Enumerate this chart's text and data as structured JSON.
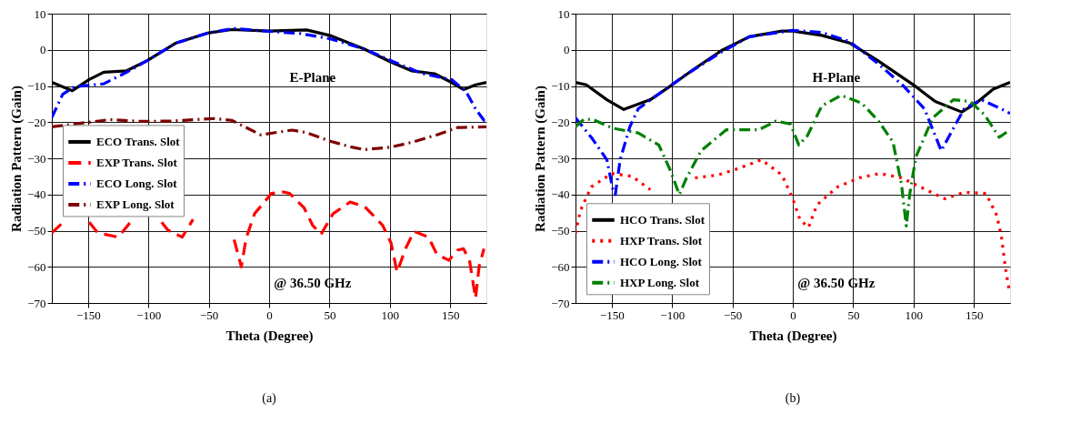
{
  "chart_data": [
    {
      "type": "line",
      "xlabel": "Theta (Degree)",
      "ylabel": "Radiation Pattern (Gain)",
      "xlim": [
        -180,
        180
      ],
      "xticks": [
        -150,
        -100,
        -50,
        0,
        50,
        100,
        150
      ],
      "ylim": [
        -70,
        10
      ],
      "yticks": [
        10,
        0,
        -10,
        -20,
        -30,
        -40,
        -50,
        -60,
        -70
      ],
      "grid": true,
      "legend": "left",
      "annotations": [
        "E-Plane",
        "@ 36.50 GHz",
        "(a)"
      ],
      "series": [
        {
          "name": "ECO Trans. Slot",
          "color": "#000000",
          "line_style": "solid",
          "x": [
            -180,
            -163,
            -149,
            -137,
            -118,
            -101,
            -77,
            -50,
            -31,
            0,
            31,
            50,
            79,
            101,
            118,
            137,
            151,
            161,
            171,
            180
          ],
          "values": [
            -9,
            -11.3,
            -8.2,
            -6.2,
            -5.8,
            -3,
            1.9,
            4.7,
            5.6,
            5.2,
            5.5,
            4,
            0.2,
            -3.4,
            -5.8,
            -6.6,
            -9,
            -11,
            -9.7,
            -9
          ]
        },
        {
          "name": "EXP Trans. Slot",
          "color": "#ff0000",
          "line_style": "dashed",
          "x": [
            -180,
            -168,
            -160,
            -149,
            -142,
            -125,
            -113,
            -100,
            -89,
            -84,
            -72,
            -63,
            -45,
            -29,
            -23,
            -19,
            -12,
            2,
            12,
            17,
            29,
            36,
            43,
            53,
            67,
            79,
            94,
            101,
            106,
            113,
            120,
            132,
            139,
            149,
            156,
            161,
            166,
            171,
            174,
            178
          ],
          "values": [
            -50.6,
            -46.9,
            null,
            -47.7,
            -50.6,
            -51.8,
            -46.9,
            null,
            -47.7,
            -49.8,
            -51.8,
            -46.9,
            null,
            -52.5,
            -60,
            -52,
            -45.3,
            -39.7,
            -39.3,
            -39.7,
            -43.7,
            -48.5,
            -51,
            -45.3,
            -42.1,
            -43.3,
            -48.5,
            -53.4,
            -61.5,
            -55,
            -50.2,
            -51.8,
            -56.6,
            -58.2,
            -55.4,
            -55,
            -58.2,
            -68.7,
            -59.8,
            -55
          ]
        },
        {
          "name": "ECO Long. Slot",
          "color": "#0000ff",
          "line_style": "dashdot",
          "x": [
            -180,
            -171,
            -161,
            -137,
            -118,
            -101,
            -77,
            -50,
            -29,
            0,
            26,
            50,
            79,
            101,
            127,
            151,
            163,
            171,
            178,
            180
          ],
          "values": [
            -18.7,
            -12.3,
            -10.2,
            -9.4,
            -6.2,
            -3,
            1.9,
            4.7,
            5.9,
            5.1,
            4.5,
            3.1,
            0.2,
            -3,
            -6.6,
            -8.2,
            -11.5,
            -16.3,
            -19.5,
            -19.5
          ]
        },
        {
          "name": "EXP Long. Slot",
          "color": "#7f0000",
          "line_style": "dashdot",
          "x": [
            -180,
            -156,
            -132,
            -106,
            -82,
            -46,
            -31,
            -22,
            -7,
            19,
            31,
            50,
            67,
            79,
            101,
            118,
            139,
            156,
            180
          ],
          "values": [
            -21.3,
            -20.3,
            -19.3,
            -19.8,
            -19.7,
            -19,
            -19.5,
            -21,
            -23.5,
            -22.2,
            -22.9,
            -25.2,
            -26.8,
            -27.6,
            -26.9,
            -25.6,
            -23.5,
            -21.5,
            -21.3
          ]
        }
      ]
    },
    {
      "type": "line",
      "xlabel": "Theta (Degree)",
      "ylabel": "Radiation Pattern (Gain)",
      "xlim": [
        -180,
        180
      ],
      "xticks": [
        -150,
        -100,
        -50,
        0,
        50,
        100,
        150
      ],
      "ylim": [
        -70,
        10
      ],
      "yticks": [
        10,
        0,
        -10,
        -20,
        -30,
        -40,
        -50,
        -60,
        -70
      ],
      "grid": true,
      "legend": "bottom left",
      "annotations": [
        "H-Plane",
        "@ 36.50 GHz",
        "(b)"
      ],
      "series": [
        {
          "name": "HCO Trans. Slot",
          "color": "#000000",
          "line_style": "solid",
          "x": [
            -180,
            -171,
            -154,
            -140,
            -118,
            -100,
            -83,
            -59,
            -36,
            -9,
            0,
            24,
            47,
            71,
            100,
            118,
            140,
            152,
            166,
            180
          ],
          "values": [
            -9,
            -9.7,
            -13.8,
            -16.5,
            -13.8,
            -9.7,
            -5.6,
            -0.2,
            3.6,
            5.2,
            5.2,
            4,
            1.9,
            -3.1,
            -9.7,
            -14.3,
            -17.2,
            -14.7,
            -10.9,
            -9
          ]
        },
        {
          "name": "HXP Trans. Slot",
          "color": "#ff0000",
          "line_style": "dotted",
          "x": [
            -180,
            -176,
            -167,
            -150,
            -133,
            -118,
            -100,
            -81,
            -62,
            -45,
            -26,
            -9,
            0,
            6,
            13,
            20,
            37,
            55,
            72,
            90,
            108,
            126,
            142,
            160,
            169,
            173,
            176,
            179
          ],
          "values": [
            -50.7,
            -44.5,
            -37.9,
            -34.2,
            -35,
            -38.7,
            null,
            -35.4,
            -34.6,
            -32.8,
            -30.4,
            -34.6,
            -41.2,
            -47,
            -49.1,
            -42.9,
            -37.9,
            -35.4,
            -34.2,
            -35.4,
            -38.3,
            -41.2,
            -39.4,
            -39.7,
            -45.8,
            -52,
            -60,
            -66
          ]
        },
        {
          "name": "HCO Long. Slot",
          "color": "#0000ff",
          "line_style": "dashdot",
          "x": [
            -180,
            -166,
            -154,
            -149,
            -147,
            -143,
            -135,
            -128,
            -111,
            -90,
            -59,
            -36,
            0,
            24,
            47,
            71,
            92,
            109,
            123,
            135,
            142,
            156,
            175,
            180
          ],
          "values": [
            -18.8,
            -24.6,
            -30.4,
            -38.7,
            -40,
            -30.4,
            -21.3,
            -16.3,
            -12.2,
            -7.2,
            -0.6,
            3.6,
            5.4,
            4.8,
            2.3,
            -3.9,
            -10.1,
            -16.3,
            -27.9,
            -20.5,
            -16.3,
            -13.8,
            -16.7,
            -17.6
          ]
        },
        {
          "name": "HXP Long. Slot",
          "color": "#008000",
          "line_style": "dashdot",
          "x": [
            -180,
            -173,
            -166,
            -149,
            -128,
            -111,
            -102,
            -94,
            -88,
            -76,
            -55,
            -28,
            -14,
            -2,
            5,
            12,
            24,
            40,
            57,
            71,
            83,
            90,
            94,
            97,
            102,
            116,
            133,
            147,
            159,
            171,
            180
          ],
          "values": [
            -21.3,
            -19.2,
            -19.2,
            -21.7,
            -23,
            -26.3,
            -32.9,
            -40,
            -35.4,
            -27.9,
            -22.1,
            -22.1,
            -19.7,
            -20.5,
            -26.3,
            -23.8,
            -15.5,
            -12.6,
            -14.7,
            -19.7,
            -25.5,
            -37.1,
            -48.7,
            -39.6,
            -29.6,
            -18.8,
            -13.8,
            -14.3,
            -18,
            -24.2,
            -22.1
          ]
        }
      ]
    }
  ]
}
